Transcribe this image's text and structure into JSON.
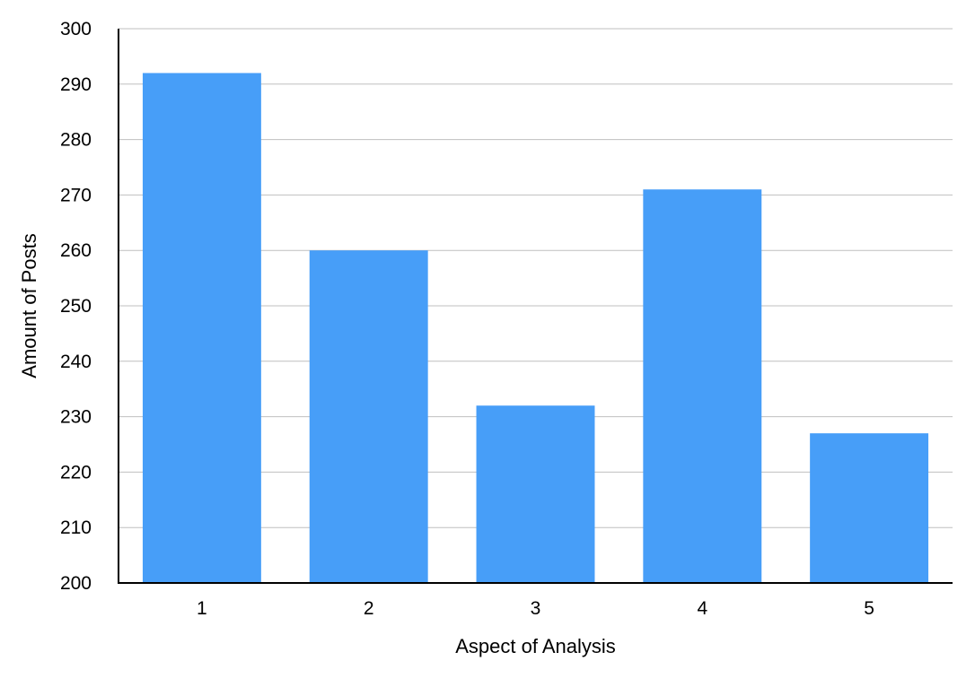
{
  "chart_data": {
    "type": "bar",
    "title": "",
    "xlabel": "Aspect of Analysis",
    "ylabel": "Amount of Posts",
    "categories": [
      "1",
      "2",
      "3",
      "4",
      "5"
    ],
    "values": [
      292,
      260,
      232,
      271,
      227
    ],
    "ylim": [
      200,
      300
    ],
    "yticks": [
      "200",
      "210",
      "220",
      "230",
      "240",
      "250",
      "260",
      "270",
      "280",
      "290",
      "300"
    ],
    "grid": true,
    "legend": "none",
    "colors": {
      "bar": "#479EF8",
      "grid": "#BFBFBF",
      "axis": "#000000"
    }
  }
}
